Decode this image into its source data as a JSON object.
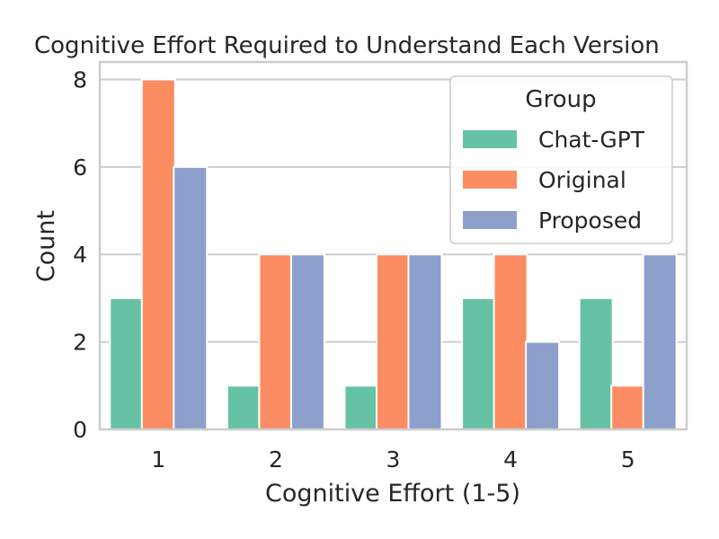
{
  "chart_data": {
    "type": "bar",
    "title": "Cognitive Effort Required to Understand Each Version",
    "xlabel": "Cognitive Effort (1-5)",
    "ylabel": "Count",
    "categories": [
      "1",
      "2",
      "3",
      "4",
      "5"
    ],
    "ylim": [
      0,
      8.4
    ],
    "yticks": [
      0,
      2,
      4,
      6,
      8
    ],
    "grid": true,
    "legend": {
      "title": "Group",
      "placement": "top-right"
    },
    "series": [
      {
        "name": "Chat-GPT",
        "color": "#66c2a5",
        "values": [
          3,
          1,
          1,
          3,
          3
        ]
      },
      {
        "name": "Original",
        "color": "#fc8d62",
        "values": [
          8,
          4,
          4,
          4,
          1
        ]
      },
      {
        "name": "Proposed",
        "color": "#8da0cb",
        "values": [
          6,
          4,
          4,
          2,
          4
        ]
      }
    ]
  }
}
